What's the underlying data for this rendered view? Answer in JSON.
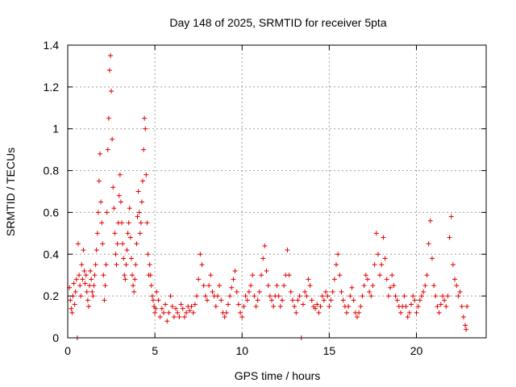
{
  "chart_data": {
    "type": "scatter",
    "title": "Day 148 of 2025, SRMTID for receiver 5pta",
    "xlabel": "GPS time / hours",
    "ylabel": "SRMTID / TECUs",
    "xlim": [
      0,
      24
    ],
    "ylim": [
      0,
      1.4
    ],
    "x_ticks": [
      0,
      5,
      10,
      15,
      20
    ],
    "x_tick_labels": [
      "0",
      "5",
      "10",
      "15",
      "20"
    ],
    "y_ticks": [
      0,
      0.2,
      0.4,
      0.6,
      0.8,
      1.0,
      1.2,
      1.4
    ],
    "y_tick_labels": [
      "0",
      "0.2",
      "0.4",
      "0.6",
      "0.8",
      "1",
      "1.2",
      "1.4"
    ],
    "grid": true,
    "marker": "plus",
    "color": "#e00000",
    "series": [
      {
        "name": "SRMTID",
        "points": [
          [
            0.1,
            0.24
          ],
          [
            0.15,
            0.18
          ],
          [
            0.2,
            0.14
          ],
          [
            0.25,
            0.12
          ],
          [
            0.3,
            0.2
          ],
          [
            0.35,
            0.26
          ],
          [
            0.4,
            0.16
          ],
          [
            0.45,
            0.22
          ],
          [
            0.5,
            0.28
          ],
          [
            0.55,
            0.0
          ],
          [
            0.6,
            0.45
          ],
          [
            0.65,
            0.3
          ],
          [
            0.7,
            0.25
          ],
          [
            0.75,
            0.2
          ],
          [
            0.8,
            0.35
          ],
          [
            0.85,
            0.28
          ],
          [
            0.9,
            0.42
          ],
          [
            0.95,
            0.32
          ],
          [
            1.0,
            0.26
          ],
          [
            1.05,
            0.3
          ],
          [
            1.1,
            0.22
          ],
          [
            1.15,
            0.18
          ],
          [
            1.2,
            0.15
          ],
          [
            1.25,
            0.25
          ],
          [
            1.3,
            0.32
          ],
          [
            1.35,
            0.28
          ],
          [
            1.4,
            0.22
          ],
          [
            1.45,
            0.2
          ],
          [
            1.5,
            0.25
          ],
          [
            1.55,
            0.3
          ],
          [
            1.6,
            0.35
          ],
          [
            1.65,
            0.42
          ],
          [
            1.7,
            0.5
          ],
          [
            1.75,
            0.6
          ],
          [
            1.8,
            0.75
          ],
          [
            1.85,
            0.88
          ],
          [
            1.9,
            0.65
          ],
          [
            1.95,
            0.55
          ],
          [
            2.0,
            0.45
          ],
          [
            2.05,
            0.3
          ],
          [
            2.1,
            0.18
          ],
          [
            2.15,
            0.25
          ],
          [
            2.2,
            0.35
          ],
          [
            2.25,
            0.6
          ],
          [
            2.3,
            0.9
          ],
          [
            2.35,
            1.05
          ],
          [
            2.4,
            1.28
          ],
          [
            2.45,
            1.35
          ],
          [
            2.5,
            1.18
          ],
          [
            2.55,
            0.95
          ],
          [
            2.6,
            0.72
          ],
          [
            2.65,
            0.62
          ],
          [
            2.7,
            0.5
          ],
          [
            2.75,
            0.4
          ],
          [
            2.8,
            0.35
          ],
          [
            2.85,
            0.45
          ],
          [
            2.9,
            0.55
          ],
          [
            2.95,
            0.68
          ],
          [
            3.0,
            0.78
          ],
          [
            3.05,
            0.65
          ],
          [
            3.1,
            0.55
          ],
          [
            3.15,
            0.45
          ],
          [
            3.2,
            0.38
          ],
          [
            3.25,
            0.3
          ],
          [
            3.3,
            0.28
          ],
          [
            3.35,
            0.35
          ],
          [
            3.4,
            0.42
          ],
          [
            3.45,
            0.5
          ],
          [
            3.5,
            0.55
          ],
          [
            3.55,
            0.62
          ],
          [
            3.6,
            0.48
          ],
          [
            3.65,
            0.38
          ],
          [
            3.7,
            0.3
          ],
          [
            3.75,
            0.25
          ],
          [
            3.8,
            0.22
          ],
          [
            3.85,
            0.28
          ],
          [
            3.9,
            0.35
          ],
          [
            3.95,
            0.45
          ],
          [
            4.0,
            0.58
          ],
          [
            4.05,
            0.7
          ],
          [
            4.1,
            0.6
          ],
          [
            4.15,
            0.5
          ],
          [
            4.2,
            0.55
          ],
          [
            4.25,
            0.65
          ],
          [
            4.3,
            0.75
          ],
          [
            4.35,
            0.9
          ],
          [
            4.4,
            1.05
          ],
          [
            4.45,
            1.0
          ],
          [
            4.5,
            0.78
          ],
          [
            4.55,
            0.55
          ],
          [
            4.6,
            0.4
          ],
          [
            4.65,
            0.3
          ],
          [
            4.7,
            0.35
          ],
          [
            4.75,
            0.3
          ],
          [
            4.8,
            0.25
          ],
          [
            4.85,
            0.2
          ],
          [
            4.9,
            0.18
          ],
          [
            4.95,
            0.15
          ],
          [
            5.0,
            0.12
          ],
          [
            5.05,
            0.14
          ],
          [
            5.1,
            0.22
          ],
          [
            5.2,
            0.18
          ],
          [
            5.3,
            0.1
          ],
          [
            5.4,
            0.14
          ],
          [
            5.5,
            0.12
          ],
          [
            5.6,
            0.16
          ],
          [
            5.7,
            0.08
          ],
          [
            5.8,
            0.12
          ],
          [
            5.9,
            0.2
          ],
          [
            6.0,
            0.15
          ],
          [
            6.1,
            0.1
          ],
          [
            6.2,
            0.14
          ],
          [
            6.3,
            0.12
          ],
          [
            6.4,
            0.1
          ],
          [
            6.5,
            0.16
          ],
          [
            6.6,
            0.14
          ],
          [
            6.7,
            0.1
          ],
          [
            6.8,
            0.12
          ],
          [
            6.9,
            0.15
          ],
          [
            7.0,
            0.13
          ],
          [
            7.1,
            0.15
          ],
          [
            7.2,
            0.12
          ],
          [
            7.3,
            0.16
          ],
          [
            7.4,
            0.2
          ],
          [
            7.5,
            0.28
          ],
          [
            7.6,
            0.4
          ],
          [
            7.7,
            0.35
          ],
          [
            7.8,
            0.25
          ],
          [
            7.9,
            0.2
          ],
          [
            8.0,
            0.18
          ],
          [
            8.1,
            0.25
          ],
          [
            8.2,
            0.3
          ],
          [
            8.3,
            0.22
          ],
          [
            8.4,
            0.2
          ],
          [
            8.5,
            0.15
          ],
          [
            8.6,
            0.2
          ],
          [
            8.7,
            0.25
          ],
          [
            8.8,
            0.18
          ],
          [
            8.9,
            0.12
          ],
          [
            9.0,
            0.1
          ],
          [
            9.1,
            0.12
          ],
          [
            9.2,
            0.16
          ],
          [
            9.3,
            0.2
          ],
          [
            9.4,
            0.24
          ],
          [
            9.5,
            0.28
          ],
          [
            9.6,
            0.32
          ],
          [
            9.7,
            0.22
          ],
          [
            9.8,
            0.16
          ],
          [
            9.9,
            0.12
          ],
          [
            10.0,
            0.1
          ],
          [
            10.1,
            0.15
          ],
          [
            10.2,
            0.2
          ],
          [
            10.3,
            0.18
          ],
          [
            10.4,
            0.22
          ],
          [
            10.5,
            0.25
          ],
          [
            10.6,
            0.3
          ],
          [
            10.7,
            0.2
          ],
          [
            10.8,
            0.15
          ],
          [
            10.9,
            0.18
          ],
          [
            11.0,
            0.22
          ],
          [
            11.1,
            0.3
          ],
          [
            11.2,
            0.38
          ],
          [
            11.3,
            0.44
          ],
          [
            11.4,
            0.32
          ],
          [
            11.5,
            0.25
          ],
          [
            11.6,
            0.2
          ],
          [
            11.7,
            0.18
          ],
          [
            11.8,
            0.15
          ],
          [
            11.9,
            0.2
          ],
          [
            12.0,
            0.25
          ],
          [
            12.1,
            0.2
          ],
          [
            12.2,
            0.15
          ],
          [
            12.3,
            0.18
          ],
          [
            12.4,
            0.25
          ],
          [
            12.5,
            0.3
          ],
          [
            12.6,
            0.42
          ],
          [
            12.7,
            0.3
          ],
          [
            12.8,
            0.22
          ],
          [
            12.9,
            0.18
          ],
          [
            13.0,
            0.15
          ],
          [
            13.1,
            0.12
          ],
          [
            13.2,
            0.18
          ],
          [
            13.3,
            0.2
          ],
          [
            13.4,
            0.0
          ],
          [
            13.5,
            0.16
          ],
          [
            13.6,
            0.22
          ],
          [
            13.7,
            0.2
          ],
          [
            13.8,
            0.28
          ],
          [
            13.9,
            0.25
          ],
          [
            14.0,
            0.18
          ],
          [
            14.1,
            0.15
          ],
          [
            14.2,
            0.14
          ],
          [
            14.3,
            0.16
          ],
          [
            14.4,
            0.12
          ],
          [
            14.5,
            0.15
          ],
          [
            14.6,
            0.2
          ],
          [
            14.7,
            0.18
          ],
          [
            14.8,
            0.22
          ],
          [
            14.9,
            0.2
          ],
          [
            15.0,
            0.15
          ],
          [
            15.1,
            0.18
          ],
          [
            15.2,
            0.22
          ],
          [
            15.3,
            0.28
          ],
          [
            15.4,
            0.35
          ],
          [
            15.5,
            0.4
          ],
          [
            15.6,
            0.3
          ],
          [
            15.7,
            0.22
          ],
          [
            15.8,
            0.18
          ],
          [
            15.9,
            0.15
          ],
          [
            16.0,
            0.12
          ],
          [
            16.1,
            0.15
          ],
          [
            16.2,
            0.2
          ],
          [
            16.3,
            0.24
          ],
          [
            16.4,
            0.18
          ],
          [
            16.5,
            0.12
          ],
          [
            16.6,
            0.1
          ],
          [
            16.7,
            0.12
          ],
          [
            16.8,
            0.15
          ],
          [
            16.9,
            0.2
          ],
          [
            17.0,
            0.25
          ],
          [
            17.1,
            0.3
          ],
          [
            17.2,
            0.28
          ],
          [
            17.3,
            0.22
          ],
          [
            17.4,
            0.2
          ],
          [
            17.5,
            0.25
          ],
          [
            17.6,
            0.35
          ],
          [
            17.7,
            0.5
          ],
          [
            17.8,
            0.4
          ],
          [
            17.9,
            0.3
          ],
          [
            18.0,
            0.35
          ],
          [
            18.1,
            0.48
          ],
          [
            18.2,
            0.38
          ],
          [
            18.3,
            0.28
          ],
          [
            18.4,
            0.2
          ],
          [
            18.5,
            0.24
          ],
          [
            18.6,
            0.3
          ],
          [
            18.7,
            0.25
          ],
          [
            18.8,
            0.2
          ],
          [
            18.9,
            0.18
          ],
          [
            19.0,
            0.15
          ],
          [
            19.1,
            0.12
          ],
          [
            19.2,
            0.15
          ],
          [
            19.3,
            0.2
          ],
          [
            19.4,
            0.15
          ],
          [
            19.5,
            0.1
          ],
          [
            19.6,
            0.12
          ],
          [
            19.7,
            0.16
          ],
          [
            19.8,
            0.2
          ],
          [
            19.9,
            0.18
          ],
          [
            20.0,
            0.12
          ],
          [
            20.1,
            0.15
          ],
          [
            20.2,
            0.18
          ],
          [
            20.3,
            0.2
          ],
          [
            20.4,
            0.22
          ],
          [
            20.5,
            0.25
          ],
          [
            20.6,
            0.3
          ],
          [
            20.7,
            0.45
          ],
          [
            20.8,
            0.56
          ],
          [
            20.9,
            0.38
          ],
          [
            21.0,
            0.25
          ],
          [
            21.1,
            0.2
          ],
          [
            21.2,
            0.15
          ],
          [
            21.3,
            0.12
          ],
          [
            21.4,
            0.16
          ],
          [
            21.5,
            0.2
          ],
          [
            21.6,
            0.18
          ],
          [
            21.7,
            0.15
          ],
          [
            21.8,
            0.2
          ],
          [
            21.9,
            0.48
          ],
          [
            22.0,
            0.58
          ],
          [
            22.1,
            0.35
          ],
          [
            22.2,
            0.28
          ],
          [
            22.3,
            0.25
          ],
          [
            22.4,
            0.2
          ],
          [
            22.5,
            0.22
          ],
          [
            22.6,
            0.15
          ],
          [
            22.7,
            0.1
          ],
          [
            22.8,
            0.06
          ],
          [
            22.85,
            0.04
          ],
          [
            22.9,
            0.15
          ]
        ]
      }
    ]
  }
}
